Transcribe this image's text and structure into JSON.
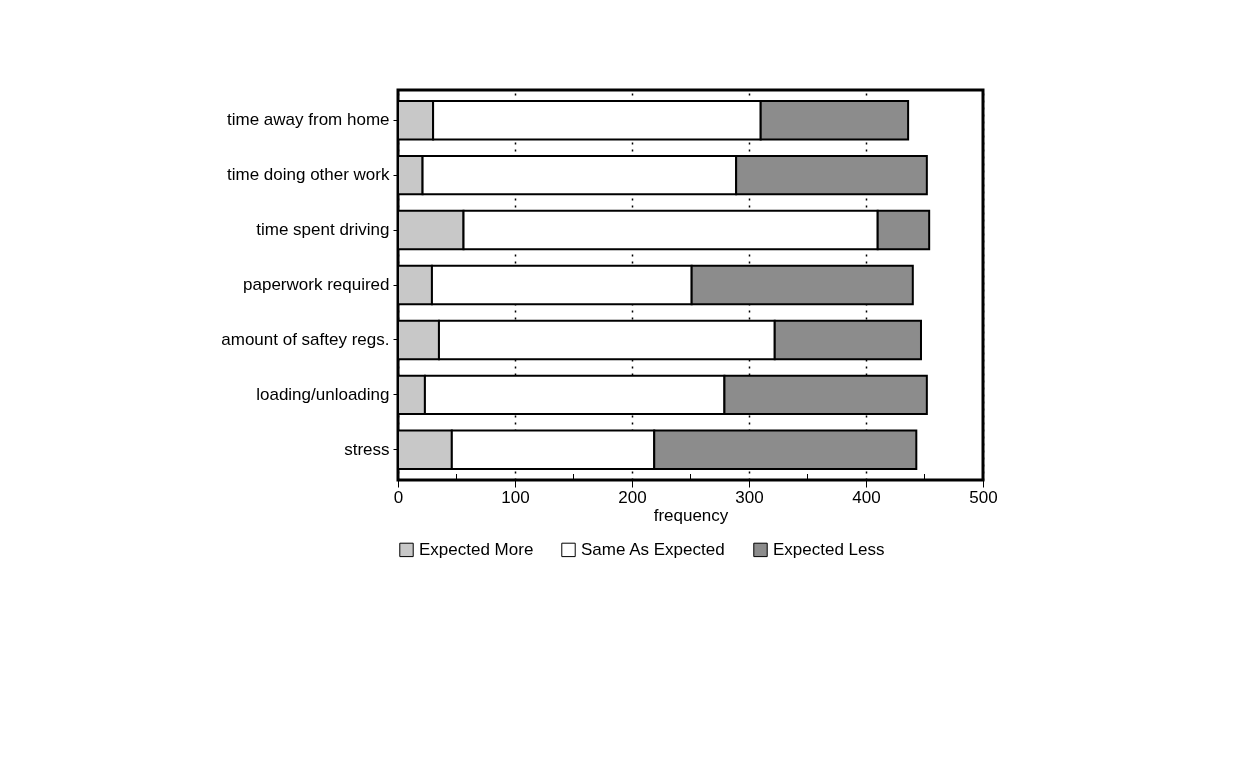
{
  "chart_data": {
    "type": "bar",
    "orientation": "horizontal",
    "stacked": true,
    "categories": [
      "time away from home",
      "time doing other work",
      "time spent driving",
      "paperwork required",
      "amount of saftey regs.",
      "loading/unloading",
      "stress"
    ],
    "series": [
      {
        "name": "Expected More",
        "color": "#c8c8c8",
        "values": [
          30,
          21,
          56,
          29,
          35,
          23,
          46
        ]
      },
      {
        "name": "Same As Expected",
        "color": "#ffffff",
        "values": [
          280,
          268,
          354,
          222,
          287,
          256,
          173
        ]
      },
      {
        "name": "Expected Less",
        "color": "#8c8c8c",
        "values": [
          126,
          163,
          44,
          189,
          125,
          173,
          224
        ]
      }
    ],
    "xlabel": "frequency",
    "xlim": [
      0,
      500
    ],
    "xticks": [
      0,
      {
        "value": 50,
        "label": null
      },
      100,
      {
        "value": 150,
        "label": null
      },
      200,
      {
        "value": 250,
        "label": null
      },
      300,
      {
        "value": 350,
        "label": null
      },
      400,
      {
        "value": 450,
        "label": null
      },
      500
    ],
    "grid": "x",
    "legend": "bottom"
  }
}
